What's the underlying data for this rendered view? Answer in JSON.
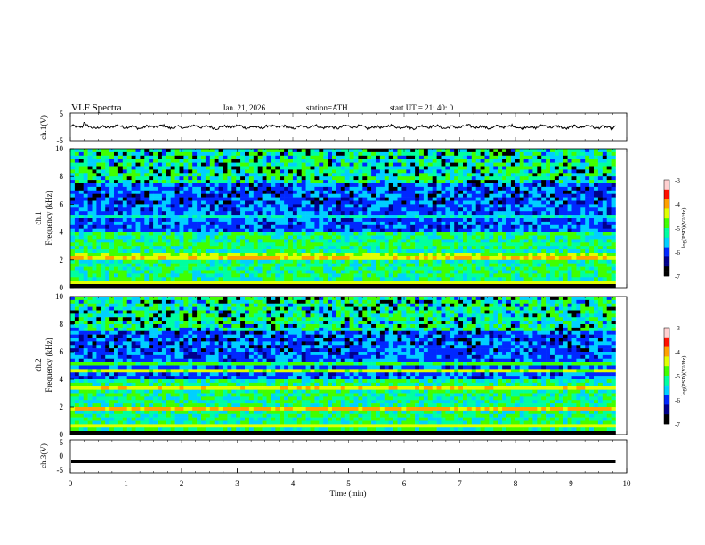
{
  "header": {
    "title": "VLF  Spectra",
    "date": "Jan. 21, 2026",
    "station": "station=ATH",
    "start_ut": "start  UT  =   21: 40: 0"
  },
  "chart_data": [
    {
      "type": "line",
      "panel": "ch1-waveform",
      "ylabel": "ch.1(V)",
      "ylim": [
        -5,
        5
      ],
      "yticks": [
        "5",
        "-5"
      ],
      "xlim": [
        0,
        10
      ],
      "x_extent_min": [
        0,
        9.8
      ],
      "series": [
        {
          "description_values": "noisy waveform oscillating around about 0 V (roughly -0.8 to +0.8 V), one spike near 0.25 min reaching about +1.5 V",
          "color": "#000000"
        }
      ]
    },
    {
      "type": "heatmap",
      "panel": "ch1-spectrogram",
      "ylabel": "ch.1 Frequency  (kHz)",
      "ylim": [
        0,
        10
      ],
      "yticks": [
        "0",
        "2",
        "4",
        "6",
        "8",
        "10"
      ],
      "xlim": [
        0,
        10
      ],
      "colorbar": {
        "label": "log(PSD)(V²/Hz)",
        "range": [
          -7,
          -3
        ],
        "ticks": [
          "-3",
          "-4",
          "-5",
          "-6",
          "-7"
        ]
      },
      "bands_khz": [
        {
          "freq": 2.1,
          "level": -4.2
        },
        {
          "freq": 2.4,
          "level": -4.6
        },
        {
          "freq": 3.2,
          "level": -5.2
        },
        {
          "freq": 5.2,
          "level": -5.4
        },
        {
          "freq": 0.4,
          "level": -4.4
        }
      ]
    },
    {
      "type": "heatmap",
      "panel": "ch2-spectrogram",
      "ylabel": "ch.2 Frequency  (kHz)",
      "ylim": [
        0,
        10
      ],
      "yticks": [
        "0",
        "2",
        "4",
        "6",
        "8",
        "10"
      ],
      "xlim": [
        0,
        10
      ],
      "colorbar": {
        "label": "log(PSD)(V²/Hz)",
        "range": [
          -7,
          -3
        ],
        "ticks": [
          "-3",
          "-4",
          "-5",
          "-6",
          "-7"
        ]
      },
      "bands_khz": [
        {
          "freq": 1.9,
          "level": -4.1
        },
        {
          "freq": 3.4,
          "level": -4.3
        },
        {
          "freq": 4.7,
          "level": -4.5
        },
        {
          "freq": 5.2,
          "level": -4.9
        },
        {
          "freq": 0.7,
          "level": -4.4
        }
      ]
    },
    {
      "type": "line",
      "panel": "ch3-waveform",
      "ylabel": "ch.3(V)",
      "ylim": [
        -5,
        5
      ],
      "yticks": [
        "5",
        "0",
        "-5"
      ],
      "xlim": [
        0,
        10
      ],
      "series": [
        {
          "description_values": "flat thick line at about -1.5 V from 0 to 9.8 min",
          "value": -1.5,
          "color": "#000000"
        }
      ]
    }
  ],
  "x_axis": {
    "label": "Time  (min)",
    "ticks": [
      "0",
      "1",
      "2",
      "3",
      "4",
      "5",
      "6",
      "7",
      "8",
      "9",
      "10"
    ]
  },
  "colors": {
    "background": "#ffffff",
    "axis": "#000000",
    "colormap": [
      "#000000",
      "#00008c",
      "#0028ff",
      "#00d0ff",
      "#00ffa0",
      "#40ff00",
      "#e0ff00",
      "#ffa000",
      "#ff1000",
      "#ffd0d0"
    ]
  }
}
